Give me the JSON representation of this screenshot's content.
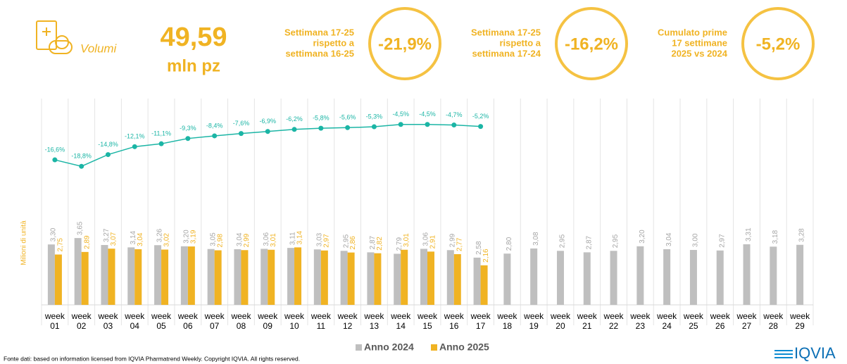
{
  "header": {
    "label": "Volumi",
    "value": "49,59",
    "unit": "mln pz"
  },
  "kpis": [
    {
      "lines": [
        "Settimana 17-25",
        "rispetto a",
        "settimana 16-25"
      ],
      "value": "-21,9%"
    },
    {
      "lines": [
        "Settimana 17-25",
        "rispetto a",
        "settimana 17-24"
      ],
      "value": "-16,2%"
    },
    {
      "lines": [
        "Cumulato prime",
        "17 settimane",
        "2025 vs 2024"
      ],
      "value": "-5,2%"
    }
  ],
  "footer": {
    "source": "Fonte dati: based on information licensed from IQVIA Pharmatrend Weekly. Copyright IQVIA. All rights reserved.",
    "logo": "IQVIA"
  },
  "chart_data": {
    "type": "bar",
    "y_label": "Milioni di unità",
    "categories": [
      "week 01",
      "week 02",
      "week 03",
      "week 04",
      "week 05",
      "week 06",
      "week 07",
      "week 08",
      "week 09",
      "week 10",
      "week 11",
      "week 12",
      "week 13",
      "week 14",
      "week 15",
      "week 16",
      "week 17",
      "week 18",
      "week 19",
      "week 20",
      "week 21",
      "week 22",
      "week 23",
      "week 24",
      "week 25",
      "week 26",
      "week 27",
      "week 28",
      "week 29"
    ],
    "ylim": [
      0,
      4
    ],
    "y2lim": [
      -25,
      0
    ],
    "legend": "bottom",
    "series": [
      {
        "name": "Anno 2024",
        "color": "#bfbfbf",
        "values": [
          3.3,
          3.65,
          3.27,
          3.14,
          3.26,
          3.2,
          3.05,
          3.04,
          3.06,
          3.11,
          3.03,
          2.95,
          2.87,
          2.79,
          3.06,
          2.99,
          2.58,
          2.8,
          3.08,
          2.95,
          2.87,
          2.95,
          3.2,
          3.04,
          3.0,
          2.97,
          3.31,
          3.18,
          3.28
        ],
        "value_labels": [
          "3,30",
          "3,65",
          "3,27",
          "3,14",
          "3,26",
          "3,20",
          "3,05",
          "3,04",
          "3,06",
          "3,11",
          "3,03",
          "2,95",
          "2,87",
          "2,79",
          "3,06",
          "2,99",
          "2,58",
          "2,80",
          "3,08",
          "2,95",
          "2,87",
          "2,95",
          "3,20",
          "3,04",
          "3,00",
          "2,97",
          "3,31",
          "3,18",
          "3,28"
        ]
      },
      {
        "name": "Anno 2025",
        "color": "#f0b323",
        "values": [
          2.75,
          2.89,
          3.07,
          3.04,
          3.02,
          3.19,
          2.98,
          2.99,
          3.01,
          3.14,
          2.97,
          2.86,
          2.82,
          3.01,
          2.91,
          2.77,
          2.16,
          null,
          null,
          null,
          null,
          null,
          null,
          null,
          null,
          null,
          null,
          null,
          null
        ],
        "value_labels": [
          "2,75",
          "2,89",
          "3,07",
          "3,04",
          "3,02",
          "3,19",
          "2,98",
          "2,99",
          "3,01",
          "3,14",
          "2,97",
          "2,86",
          "2,82",
          "3,01",
          "2,91",
          "2,77",
          "2,16",
          null,
          null,
          null,
          null,
          null,
          null,
          null,
          null,
          null,
          null,
          null,
          null
        ]
      },
      {
        "type": "line",
        "axis": "y2",
        "color": "#1bb5a5",
        "values": [
          -16.6,
          -18.8,
          -14.8,
          -12.1,
          -11.1,
          -9.3,
          -8.4,
          -7.6,
          -6.9,
          -6.2,
          -5.8,
          -5.6,
          -5.3,
          -4.5,
          -4.5,
          -4.7,
          -5.2,
          null,
          null,
          null,
          null,
          null,
          null,
          null,
          null,
          null,
          null,
          null,
          null
        ],
        "value_labels": [
          "-16,6%",
          "-18,8%",
          "-14,8%",
          "-12,1%",
          "-11,1%",
          "-9,3%",
          "-8,4%",
          "-7,6%",
          "-6,9%",
          "-6,2%",
          "-5,8%",
          "-5,6%",
          "-5,3%",
          "-4,5%",
          "-4,5%",
          "-4,7%",
          "-5,2%",
          null,
          null,
          null,
          null,
          null,
          null,
          null,
          null,
          null,
          null,
          null,
          null
        ]
      }
    ]
  }
}
